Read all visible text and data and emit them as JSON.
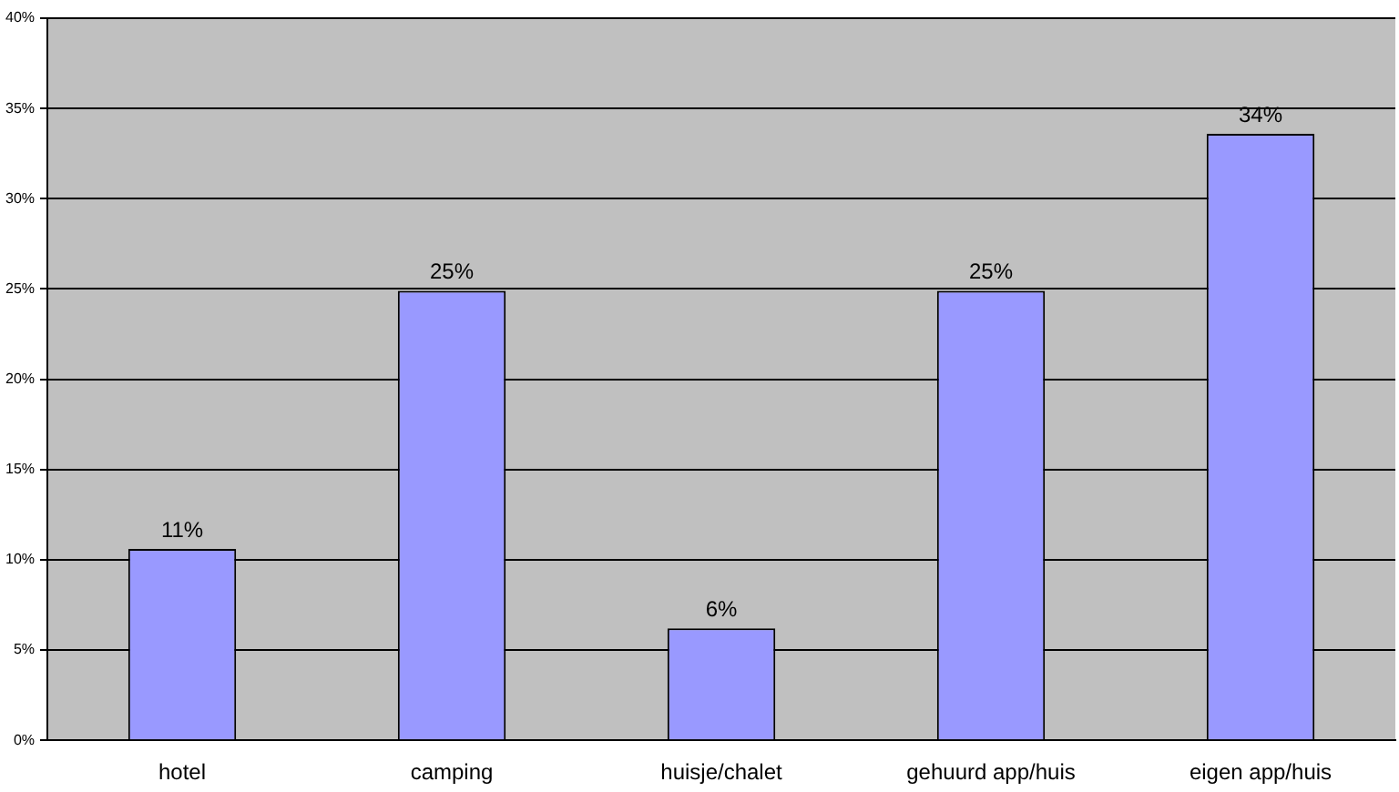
{
  "chart_data": {
    "type": "bar",
    "categories": [
      "hotel",
      "camping",
      "huisje/chalet",
      "gehuurd app/huis",
      "eigen app/huis"
    ],
    "values": [
      10.6,
      24.9,
      6.2,
      24.9,
      33.6
    ],
    "value_labels": [
      "11%",
      "25%",
      "6%",
      "25%",
      "34%"
    ],
    "color": "#9999ff",
    "ylim": [
      0,
      40
    ],
    "yticks": [
      {
        "value": 0,
        "label": "0%"
      },
      {
        "value": 5,
        "label": "5%"
      },
      {
        "value": 10,
        "label": "10%"
      },
      {
        "value": 15,
        "label": "15%"
      },
      {
        "value": 20,
        "label": "20%"
      },
      {
        "value": 25,
        "label": "25%"
      },
      {
        "value": 30,
        "label": "30%"
      },
      {
        "value": 35,
        "label": "35%"
      },
      {
        "value": 40,
        "label": "40%"
      }
    ],
    "grid": "y",
    "legend": false
  }
}
